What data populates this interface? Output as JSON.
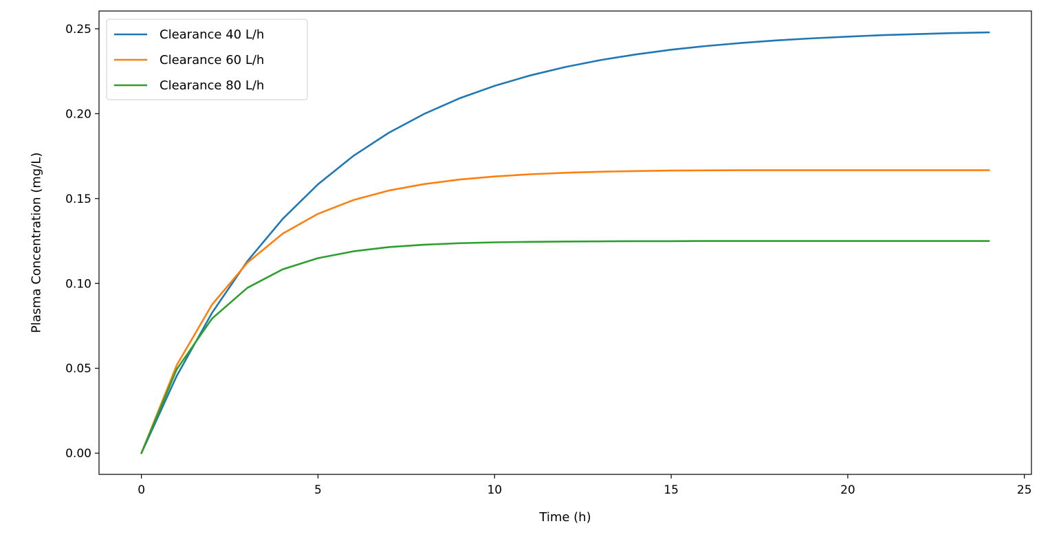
{
  "chart_data": {
    "type": "line",
    "title": "",
    "xlabel": "Time (h)",
    "ylabel": "Plasma Concentration (mg/L)",
    "xlim": [
      -1.2,
      25.2
    ],
    "ylim": [
      -0.0125,
      0.2605
    ],
    "xticks": [
      0,
      5,
      10,
      15,
      20,
      25
    ],
    "yticks": [
      0.0,
      0.05,
      0.1,
      0.15,
      0.2,
      0.25
    ],
    "ytick_labels": [
      "0.00",
      "0.05",
      "0.10",
      "0.15",
      "0.20",
      "0.25"
    ],
    "grid": false,
    "legend_position": "top-left",
    "x": [
      0,
      1,
      2,
      3,
      4,
      5,
      6,
      7,
      8,
      9,
      10,
      11,
      12,
      13,
      14,
      15,
      16,
      17,
      18,
      19,
      20,
      21,
      22,
      23,
      24
    ],
    "series": [
      {
        "name": "Clearance 40 L/h",
        "color": "#1f77b4",
        "values": [
          0.0,
          0.0455,
          0.0827,
          0.1131,
          0.138,
          0.1584,
          0.1751,
          0.1887,
          0.1998,
          0.209,
          0.2164,
          0.2225,
          0.2275,
          0.2316,
          0.2349,
          0.2377,
          0.2399,
          0.2417,
          0.2432,
          0.2444,
          0.2454,
          0.2463,
          0.2469,
          0.2475,
          0.2479
        ]
      },
      {
        "name": "Clearance 60 L/h",
        "color": "#ff7f0e",
        "values": [
          0.0,
          0.0518,
          0.0875,
          0.1122,
          0.1293,
          0.141,
          0.1491,
          0.1547,
          0.1585,
          0.1612,
          0.163,
          0.1643,
          0.1652,
          0.1658,
          0.1662,
          0.1665,
          0.1666,
          0.1667,
          0.1667,
          0.1667,
          0.1667,
          0.1667,
          0.1667,
          0.1667,
          0.1667
        ]
      },
      {
        "name": "Clearance 80 L/h",
        "color": "#2ca02c",
        "values": [
          0.0,
          0.0494,
          0.0793,
          0.0974,
          0.1083,
          0.1149,
          0.1189,
          0.1214,
          0.1228,
          0.1237,
          0.1242,
          0.1245,
          0.1247,
          0.1248,
          0.1249,
          0.1249,
          0.125,
          0.125,
          0.125,
          0.125,
          0.125,
          0.125,
          0.125,
          0.125,
          0.125
        ]
      }
    ]
  }
}
